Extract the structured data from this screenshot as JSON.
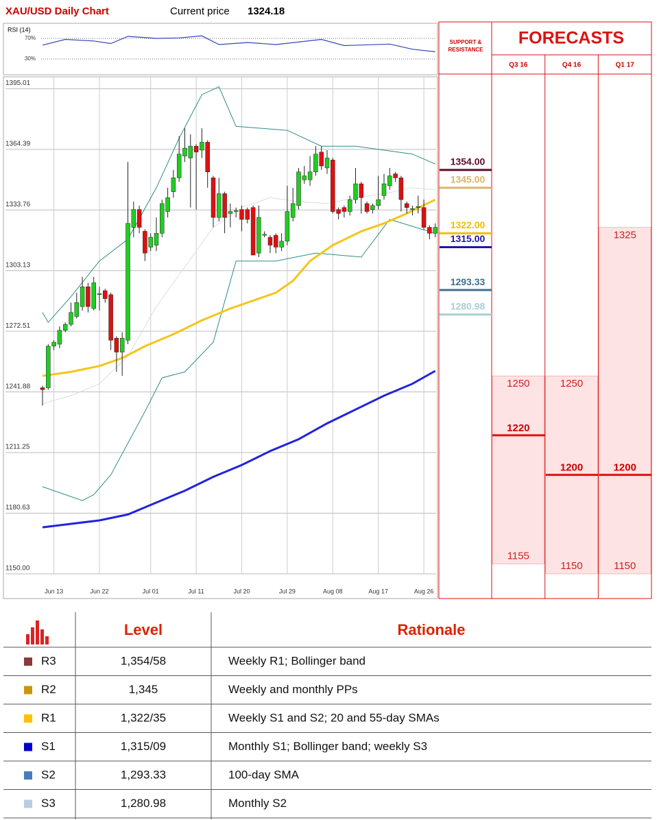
{
  "header": {
    "title": "XAU/USD Daily Chart",
    "price_label": "Current price",
    "price": 1324.18
  },
  "chart_data": [
    {
      "type": "candlestick",
      "categories": [
        null,
        null,
        "Jun 13",
        null,
        null,
        null,
        null,
        null,
        null,
        null,
        "Jun 22",
        null,
        null,
        null,
        null,
        null,
        null,
        null,
        null,
        "Jul 01",
        null,
        null,
        null,
        null,
        null,
        null,
        null,
        "Jul 11",
        null,
        null,
        null,
        null,
        null,
        null,
        null,
        "Jul 20",
        null,
        null,
        null,
        null,
        null,
        null,
        null,
        "Jul 29",
        null,
        null,
        null,
        null,
        null,
        null,
        null,
        "Aug 08",
        null,
        null,
        null,
        null,
        null,
        null,
        null,
        "Aug 17",
        null,
        null,
        null,
        null,
        null,
        null,
        null,
        "Aug 26",
        null,
        null
      ],
      "open": [
        1244,
        1244,
        1265,
        1266,
        1273,
        1276,
        1280,
        1285,
        1295,
        1284,
        1291,
        1293,
        1291,
        1269,
        1262,
        1268,
        1325,
        1334,
        1323,
        1315,
        1316,
        1322,
        1333,
        1343,
        1350,
        1361,
        1360,
        1366,
        1364,
        1368,
        1350,
        1330,
        1342,
        1332,
        1333,
        1334,
        1334,
        1335,
        1312,
        1321,
        1320,
        1321,
        1315,
        1318,
        1330,
        1336,
        1349,
        1349,
        1353,
        1363,
        1355,
        1359,
        1334,
        1335,
        1333,
        1339,
        1347,
        1337,
        1334,
        1336,
        1341,
        1346,
        1352,
        1350,
        1337,
        1334,
        1335,
        1335,
        1325,
        1322
      ],
      "high": [
        1245,
        1266,
        1268,
        1275,
        1277,
        1287,
        1292,
        1300,
        1297,
        1300,
        1295,
        1294,
        1292,
        1270,
        1272,
        1358,
        1338,
        1336,
        1324,
        1322,
        1330,
        1339,
        1345,
        1354,
        1371,
        1375,
        1372,
        1367,
        1375,
        1369,
        1351,
        1350,
        1343,
        1337,
        1335,
        1336,
        1335,
        1336,
        1336,
        1323,
        1321,
        1322,
        1322,
        1346,
        1345,
        1355,
        1356,
        1361,
        1366,
        1366,
        1364,
        1360,
        1335,
        1336,
        1341,
        1355,
        1348,
        1338,
        1337,
        1351,
        1352,
        1355,
        1353,
        1351,
        1338,
        1336,
        1341,
        1339,
        1326,
        1327
      ],
      "low": [
        1235,
        1243,
        1263,
        1264,
        1272,
        1275,
        1279,
        1283,
        1282,
        1283,
        1283,
        1287,
        1263,
        1252,
        1250,
        1266,
        1320,
        1322,
        1308,
        1313,
        1313,
        1320,
        1330,
        1340,
        1348,
        1358,
        1335,
        1334,
        1360,
        1345,
        1325,
        1328,
        1322,
        1325,
        1330,
        1323,
        1327,
        1311,
        1310,
        1320,
        1312,
        1312,
        1313,
        1316,
        1328,
        1334,
        1347,
        1346,
        1351,
        1354,
        1352,
        1332,
        1329,
        1330,
        1331,
        1337,
        1332,
        1332,
        1332,
        1334,
        1339,
        1344,
        1348,
        1333,
        1332,
        1331,
        1332,
        1324,
        1319,
        1320
      ],
      "close": [
        1243,
        1265,
        1267,
        1273,
        1276,
        1282,
        1287,
        1295,
        1285,
        1297,
        1291.5,
        1289,
        1268,
        1262,
        1269,
        1327,
        1334,
        1325,
        1312,
        1320,
        1322,
        1337,
        1340,
        1350,
        1362,
        1365,
        1366,
        1363,
        1368,
        1353,
        1330,
        1342,
        1330,
        1333,
        1333.5,
        1329,
        1329,
        1311,
        1330,
        1321.5,
        1316,
        1315,
        1318,
        1333,
        1337,
        1353,
        1351,
        1353,
        1362,
        1356,
        1360,
        1333,
        1332,
        1333,
        1339,
        1347,
        1340,
        1333,
        1336,
        1339,
        1347,
        1351,
        1350,
        1339,
        1335,
        1334.5,
        1335.5,
        1325,
        1322,
        1325
      ],
      "up_color": "#22cc22",
      "down_color": "#dd1111",
      "ylim": [
        1150,
        1395.01
      ],
      "yticks": [
        {
          "value": 1150,
          "label": "1150.00"
        },
        1180.63,
        1211.25,
        1241.88,
        1272.51,
        1303.13,
        1333.76,
        1364.39,
        1395.01
      ],
      "grid": true,
      "overlays": [
        {
          "color": "#2e8b83",
          "width": 1,
          "x": [
            0,
            1,
            5,
            10,
            15,
            20,
            24,
            28,
            31,
            34,
            43,
            49,
            55,
            65,
            69
          ],
          "values": [
            1282,
            1277,
            1290,
            1308,
            1319,
            1345,
            1370,
            1392,
            1396,
            1376,
            1374,
            1366,
            1366,
            1362,
            1357
          ]
        },
        {
          "color": "#2e8b83",
          "width": 1,
          "x": [
            0,
            7,
            9,
            12,
            18,
            21,
            25,
            30,
            34,
            41,
            48,
            56,
            61,
            69
          ],
          "values": [
            1194,
            1187,
            1190,
            1200,
            1232,
            1249,
            1252,
            1267,
            1308,
            1308,
            1312,
            1310,
            1329,
            1322
          ]
        },
        {
          "color": "#dddddd",
          "width": 1,
          "x": [
            0,
            5,
            10,
            15,
            20,
            25,
            30,
            35,
            40,
            45,
            50,
            55,
            60,
            65,
            69
          ],
          "values": [
            1236,
            1240,
            1246,
            1260,
            1285,
            1305,
            1325,
            1335,
            1340,
            1338,
            1337,
            1340,
            1342,
            1345,
            1344
          ]
        },
        {
          "color": "#f5c518",
          "width": 3,
          "x": [
            0,
            5,
            10,
            14,
            18,
            23,
            28,
            33,
            37,
            41,
            44,
            47,
            51,
            56,
            60,
            64,
            69
          ],
          "values": [
            1250,
            1252,
            1255,
            1259,
            1265,
            1271,
            1278,
            1284,
            1288,
            1292,
            1298,
            1308,
            1316,
            1323,
            1327,
            1332,
            1339
          ]
        },
        {
          "color": "#2222dd",
          "width": 3,
          "x": [
            0,
            10,
            15,
            20,
            25,
            30,
            35,
            40,
            45,
            50,
            55,
            60,
            65,
            69
          ],
          "values": [
            1173.5,
            1177,
            1180,
            1186,
            1192,
            1199,
            1205,
            1212,
            1218,
            1226,
            1233,
            1240,
            1246,
            1252.5
          ]
        }
      ],
      "support_resistance": {
        "title": "SUPPORT & RESISTANCE",
        "levels": [
          {
            "value": 1354,
            "label": "1354.00",
            "color": "#5c0a2a"
          },
          {
            "value": 1345,
            "label": "1345.00",
            "color": "#d9b46a"
          },
          {
            "value": 1322,
            "label": "1322.00",
            "color": "#f2bd00"
          },
          {
            "value": 1315,
            "label": "1315.00",
            "color": "#1a1aa6"
          },
          {
            "value": 1293.33,
            "label": "1293.33",
            "color": "#3d6f8f"
          },
          {
            "value": 1280.98,
            "label": "1280.98",
            "color": "#a9cfd0"
          }
        ]
      },
      "forecasts": {
        "title": "FORECASTS",
        "columns": [
          {
            "label": "Q3 16",
            "high": 1250,
            "median": 1220,
            "low": 1155
          },
          {
            "label": "Q4 16",
            "high": 1250,
            "median": 1200,
            "low": 1150
          },
          {
            "label": "Q1 17",
            "high": 1325,
            "median": 1200,
            "low": 1150
          }
        ]
      }
    },
    {
      "type": "line",
      "title": "RSI (14)",
      "color": "#3344bb",
      "x": [
        0,
        4,
        9,
        12,
        15,
        20,
        24,
        28,
        31,
        36,
        41,
        49,
        53,
        61,
        65,
        69
      ],
      "values": [
        57,
        68,
        65,
        60,
        74,
        70,
        71,
        75,
        58,
        62,
        58,
        68,
        56,
        59,
        49,
        44
      ],
      "xlim": [
        0,
        69
      ],
      "ylim": [
        0,
        100
      ],
      "yticks": [
        {
          "value": 30,
          "label": "30%"
        },
        {
          "value": 70,
          "label": "70%"
        }
      ]
    }
  ],
  "table": {
    "headers": [
      "Level",
      "Rationale"
    ],
    "rows": [
      {
        "color": "#8b3a3a",
        "code": "R3",
        "level": "1,354/58",
        "rationale": "Weekly R1; Bollinger band"
      },
      {
        "color": "#c8960c",
        "code": "R2",
        "level": "1,345",
        "rationale": "Weekly and monthly PPs"
      },
      {
        "color": "#ffc000",
        "code": "R1",
        "level": "1,322/35",
        "rationale": "Weekly S1 and S2; 20 and 55-day SMAs"
      },
      {
        "color": "#0000cc",
        "code": "S1",
        "level": "1,315/09",
        "rationale": "Monthly S1; Bollinger band; weekly S3"
      },
      {
        "color": "#4a7ebb",
        "code": "S2",
        "level": "1,293.33",
        "rationale": "100-day SMA"
      },
      {
        "color": "#b8cce4",
        "code": "S3",
        "level": "1,280.98",
        "rationale": "Monthly S2"
      }
    ]
  }
}
